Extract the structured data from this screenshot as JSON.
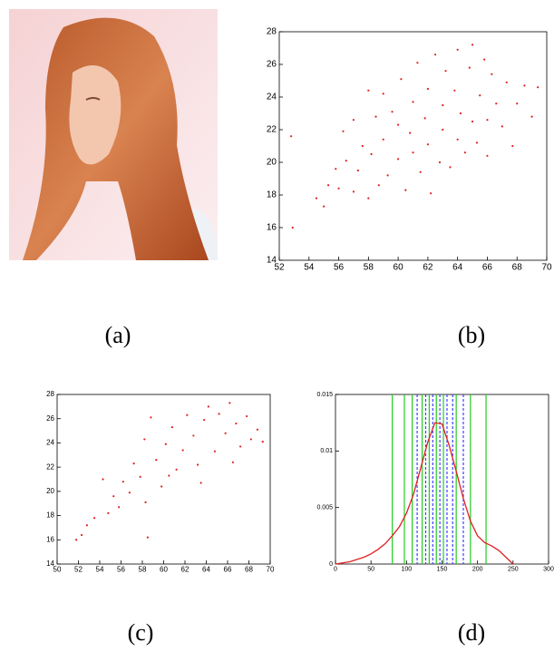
{
  "captions": [
    "(a)",
    "(b)",
    "(c)",
    "(d)"
  ],
  "chart_data": [
    {
      "type": "scatter",
      "color": "#e02020",
      "x": [
        52.8,
        52.9,
        54.5,
        55,
        55.3,
        55.8,
        56,
        56.3,
        56.5,
        57,
        57,
        57.3,
        57.6,
        58,
        58,
        58.2,
        58.5,
        58.7,
        59,
        59,
        59.3,
        59.6,
        60,
        60,
        60.2,
        60.5,
        60.8,
        61,
        61,
        61.3,
        61.5,
        61.8,
        62,
        62,
        62.2,
        62.5,
        62.8,
        63,
        63,
        63.2,
        63.5,
        63.8,
        64,
        64,
        64.2,
        64.5,
        64.8,
        65,
        65,
        65.3,
        65.5,
        65.8,
        66,
        66,
        66.3,
        66.6,
        67,
        67.3,
        67.7,
        68,
        68.5,
        69,
        69.4
      ],
      "values": [
        21.6,
        16,
        17.8,
        17.3,
        18.6,
        19.6,
        18.4,
        21.9,
        20.1,
        18.2,
        22.6,
        19.5,
        21,
        17.8,
        24.4,
        20.5,
        22.8,
        18.6,
        21.4,
        24.2,
        19.2,
        23.1,
        20.2,
        22.3,
        25.1,
        18.3,
        21.8,
        23.7,
        20.6,
        26.1,
        19.4,
        22.7,
        24.5,
        21.1,
        18.1,
        26.6,
        20,
        23.5,
        22,
        25.6,
        19.7,
        24.4,
        21.4,
        26.9,
        23,
        20.6,
        25.8,
        22.5,
        27.2,
        21.2,
        24.1,
        26.3,
        22.6,
        20.4,
        25.4,
        23.6,
        22.2,
        24.9,
        21,
        23.6,
        24.7,
        22.8,
        24.6
      ],
      "xlim": [
        52,
        70
      ],
      "xticks": [
        52,
        54,
        56,
        58,
        60,
        62,
        64,
        66,
        68,
        70
      ],
      "ylim": [
        14,
        28
      ],
      "yticks": [
        14,
        16,
        18,
        20,
        22,
        24,
        26,
        28
      ]
    },
    {
      "type": "scatter",
      "color": "#e02020",
      "x": [
        51.8,
        52.3,
        52.8,
        53.5,
        54.3,
        54.8,
        55.3,
        55.8,
        56.2,
        56.8,
        57.2,
        57.8,
        58.2,
        58.5,
        58.8,
        59.3,
        59.8,
        60.2,
        60.8,
        61.2,
        61.8,
        62.2,
        62.8,
        63.2,
        63.8,
        64.2,
        64.8,
        65.2,
        65.8,
        66.2,
        66.8,
        67.2,
        67.8,
        68.2,
        68.8,
        69.3,
        58.3,
        60.5,
        63.5,
        66.5
      ],
      "values": [
        16,
        16.4,
        17.2,
        17.8,
        21,
        18.2,
        19.6,
        18.7,
        20.8,
        19.9,
        22.3,
        21.2,
        24.3,
        16.2,
        26.1,
        22.6,
        20.4,
        23.9,
        25.3,
        21.8,
        23.4,
        26.3,
        24.6,
        22.2,
        25.9,
        27,
        23.3,
        26.4,
        24.8,
        27.3,
        25.6,
        23.7,
        26.2,
        24.3,
        25.1,
        24.1,
        19.1,
        21.3,
        20.7,
        22.4
      ],
      "xlim": [
        50,
        70
      ],
      "xticks": [
        50,
        52,
        54,
        56,
        58,
        60,
        62,
        64,
        66,
        68,
        70
      ],
      "ylim": [
        14,
        28
      ],
      "yticks": [
        14,
        16,
        18,
        20,
        22,
        24,
        26,
        28
      ]
    },
    {
      "type": "line",
      "color": "#e02020",
      "x": [
        0,
        10,
        20,
        30,
        40,
        50,
        60,
        70,
        80,
        90,
        100,
        110,
        120,
        130,
        140,
        150,
        160,
        170,
        180,
        190,
        200,
        210,
        220,
        230,
        240,
        250
      ],
      "values": [
        0,
        0.0001,
        0.0002,
        0.0004,
        0.0006,
        0.0009,
        0.0013,
        0.0018,
        0.0025,
        0.0033,
        0.0045,
        0.0062,
        0.0085,
        0.0108,
        0.0125,
        0.0124,
        0.0105,
        0.0082,
        0.0058,
        0.0038,
        0.0025,
        0.0019,
        0.0016,
        0.0012,
        0.0006,
        0
      ],
      "vlines": [
        {
          "color": "#22cc22",
          "style": "solid",
          "x": [
            80,
            97,
            108,
            122,
            132,
            142,
            152,
            170,
            190,
            212
          ]
        },
        {
          "color": "#4040ff",
          "style": "dashed",
          "x": [
            115,
            127,
            137,
            147,
            157,
            165,
            180
          ]
        }
      ],
      "xlim": [
        0,
        300
      ],
      "xticks": [
        0,
        50,
        100,
        150,
        200,
        250,
        300
      ],
      "ylim": [
        0,
        0.015
      ],
      "yticks": [
        0,
        0.005,
        0.01,
        0.015
      ]
    }
  ]
}
